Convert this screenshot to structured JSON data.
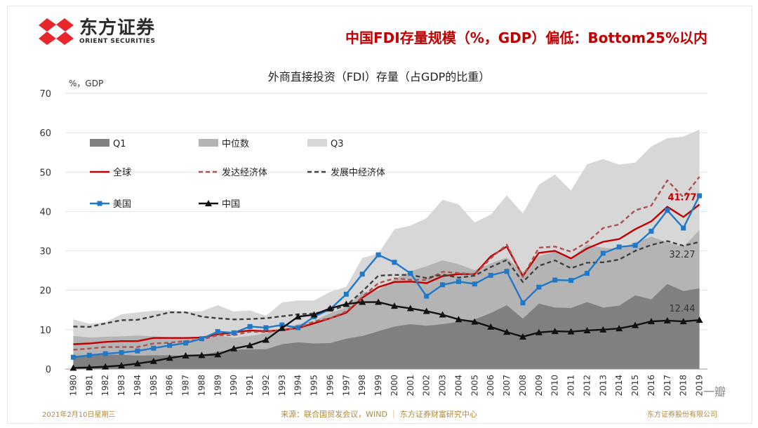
{
  "header": {
    "logo_cn": "东方证券",
    "logo_en": "ORIENT SECURITIES",
    "headline": "中国FDI存量规模（%，GDP）偏低：Bottom25%以内"
  },
  "footer": {
    "date": "2021年2月10日星期三",
    "source": "来源：联合国贸发会议，WIND ｜ 东方证券财富研究中心",
    "company": "东方证券股份有限公司",
    "watermark": "一瓣"
  },
  "colors": {
    "brand": "#e8272c",
    "q1": "#808080",
    "median": "#b4b4b4",
    "q3": "#d7d7d7",
    "world": "#c00000",
    "developed": "#b05050",
    "developing": "#404040",
    "usa": "#1f78c8",
    "china": "#111111"
  },
  "chart_data": {
    "type": "line",
    "title": "外商直接投资（FDI）存量（占GDP的比重）",
    "ylabel": "%，GDP",
    "ylim": [
      0,
      70
    ],
    "yticks": [
      0,
      10,
      20,
      30,
      40,
      50,
      60,
      70
    ],
    "grid": true,
    "legend_position": "top-left",
    "x": [
      "1980",
      "1981",
      "1982",
      "1983",
      "1984",
      "1985",
      "1986",
      "1987",
      "1988",
      "1989",
      "1990",
      "1991",
      "1992",
      "1993",
      "1994",
      "1995",
      "1996",
      "1997",
      "1998",
      "1999",
      "2000",
      "2001",
      "2002",
      "2003",
      "2004",
      "2005",
      "2006",
      "2007",
      "2008",
      "2009",
      "2010",
      "2011",
      "2012",
      "2013",
      "2014",
      "2015",
      "2016",
      "2017",
      "2018",
      "2019"
    ],
    "area_series": [
      {
        "name": "Q3",
        "values": [
          12.6,
          11.5,
          11.9,
          13.9,
          14.4,
          14.8,
          14.9,
          14.6,
          14.7,
          16.2,
          14.6,
          14.9,
          13.5,
          16.9,
          17.4,
          17.4,
          19.6,
          20.9,
          28.2,
          29.3,
          35.5,
          36.4,
          38.3,
          43.0,
          41.8,
          37.2,
          39.2,
          44.1,
          39.5,
          46.8,
          49.4,
          45.3,
          52.0,
          53.3,
          51.9,
          52.4,
          56.5,
          58.6,
          59.0,
          60.8
        ]
      },
      {
        "name": "中位数",
        "values": [
          8.4,
          8.0,
          8.2,
          8.3,
          8.5,
          8.3,
          8.1,
          7.6,
          8.0,
          8.5,
          8.0,
          8.4,
          9.1,
          10.1,
          11.4,
          12.2,
          14.2,
          15.7,
          19.4,
          20.0,
          22.8,
          24.8,
          26.1,
          27.6,
          26.6,
          25.1,
          26.8,
          28.3,
          24.6,
          28.7,
          29.8,
          28.1,
          31.6,
          30.8,
          30.5,
          32.2,
          33.6,
          32.2,
          31.0,
          35.3
        ]
      },
      {
        "name": "Q1",
        "values": [
          3.3,
          3.6,
          3.7,
          3.6,
          3.4,
          3.5,
          3.5,
          3.3,
          3.5,
          4.4,
          4.9,
          5.0,
          5.0,
          6.3,
          6.8,
          6.5,
          6.6,
          7.7,
          8.4,
          9.6,
          10.8,
          11.4,
          11.0,
          11.4,
          12.0,
          12.6,
          14.2,
          16.2,
          12.8,
          16.6,
          15.6,
          15.5,
          17.0,
          15.6,
          16.1,
          18.7,
          17.7,
          21.6,
          19.8,
          20.5
        ]
      }
    ],
    "series": [
      {
        "name": "全球",
        "style": "solid",
        "values": [
          6.3,
          6.5,
          6.9,
          7.1,
          7.1,
          7.9,
          7.9,
          7.9,
          8.0,
          8.8,
          9.3,
          9.8,
          9.6,
          9.9,
          10.4,
          11.6,
          12.9,
          14.3,
          18.1,
          20.8,
          22.1,
          22.2,
          21.8,
          23.6,
          24.1,
          24.1,
          28.6,
          31.1,
          23.6,
          29.5,
          30.0,
          28.1,
          30.6,
          32.3,
          33.0,
          35.5,
          37.5,
          41.2,
          38.6,
          41.77
        ]
      },
      {
        "name": "发达经济体",
        "style": "dashed",
        "values": [
          4.9,
          5.2,
          5.6,
          5.6,
          5.6,
          6.5,
          6.7,
          7.1,
          7.5,
          8.6,
          8.6,
          9.5,
          9.4,
          10.0,
          10.4,
          12.1,
          12.9,
          14.6,
          18.3,
          21.8,
          23.0,
          22.7,
          22.6,
          24.7,
          24.4,
          24.0,
          28.1,
          31.6,
          23.4,
          30.8,
          31.1,
          29.8,
          32.2,
          35.8,
          36.7,
          40.3,
          41.5,
          47.9,
          43.6,
          48.8
        ]
      },
      {
        "name": "发展中经济体",
        "style": "dashed",
        "values": [
          10.8,
          10.7,
          11.6,
          12.4,
          12.5,
          13.4,
          14.4,
          14.4,
          13.3,
          12.9,
          12.6,
          12.7,
          12.9,
          13.4,
          13.9,
          14.1,
          14.9,
          16.1,
          19.7,
          23.7,
          23.9,
          23.9,
          23.1,
          24.0,
          23.2,
          23.7,
          25.9,
          27.7,
          22.1,
          26.2,
          27.6,
          25.6,
          27.0,
          27.1,
          27.8,
          30.0,
          31.5,
          32.5,
          31.3,
          32.27
        ]
      },
      {
        "name": "美国",
        "style": "solid",
        "marker": "square",
        "values": [
          3.0,
          3.5,
          3.9,
          4.2,
          4.6,
          5.3,
          6.0,
          6.6,
          7.7,
          9.5,
          9.2,
          10.8,
          10.5,
          11.2,
          10.5,
          13.3,
          15.2,
          19.0,
          24.1,
          29.0,
          27.1,
          24.3,
          18.5,
          21.4,
          22.2,
          21.6,
          23.8,
          24.8,
          16.8,
          20.8,
          22.6,
          22.5,
          24.3,
          29.4,
          31.0,
          31.4,
          35.0,
          40.3,
          35.8,
          44.0
        ]
      },
      {
        "name": "中国",
        "style": "solid",
        "marker": "triangle",
        "values": [
          0.3,
          0.4,
          0.6,
          0.9,
          1.4,
          2.0,
          2.8,
          3.4,
          3.5,
          3.7,
          5.2,
          6.0,
          7.4,
          10.4,
          13.3,
          13.8,
          15.4,
          16.5,
          17.0,
          17.0,
          16.0,
          15.4,
          14.7,
          13.8,
          12.6,
          12.0,
          10.7,
          9.4,
          8.2,
          9.3,
          9.6,
          9.5,
          9.8,
          10.0,
          10.3,
          11.1,
          12.1,
          12.3,
          12.1,
          12.44
        ]
      }
    ],
    "data_labels": [
      {
        "series": "全球",
        "text": "41.77"
      },
      {
        "series": "发展中经济体",
        "text": "32.27"
      },
      {
        "series": "中国",
        "text": "12.44"
      }
    ]
  }
}
